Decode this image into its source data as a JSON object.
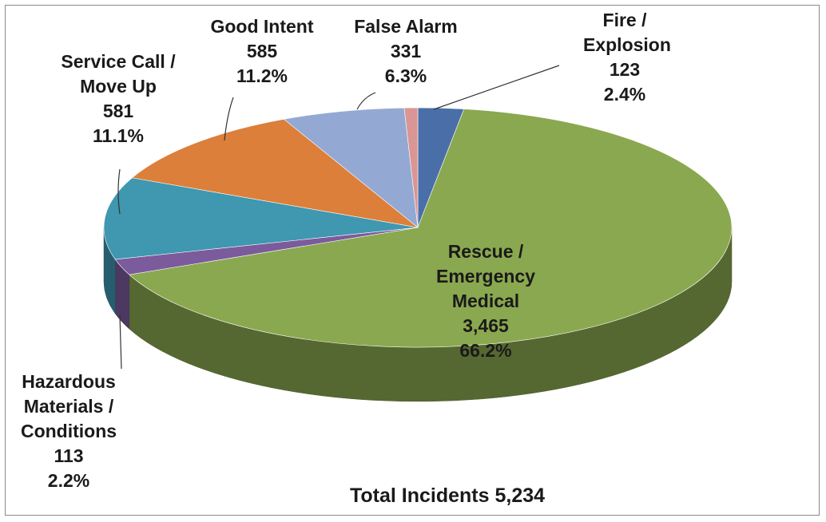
{
  "chart_data": {
    "type": "pie",
    "title": "Total Incidents 5,234",
    "categories": [
      "Fire / Explosion",
      "Rescue / Emergency Medical",
      "Hazardous Materials / Conditions",
      "Service Call / Move Up",
      "Good Intent",
      "False Alarm",
      null
    ],
    "values": [
      123,
      3465,
      113,
      581,
      585,
      331,
      36
    ],
    "value_labels": [
      "123",
      "3,465",
      "113",
      "581",
      "585",
      "331",
      null
    ],
    "percent_labels": [
      "2.4%",
      "66.2%",
      "2.2%",
      "11.1%",
      "11.2%",
      "6.3%",
      null
    ],
    "colors": [
      "#4a6fa8",
      "#8aa84f",
      "#7b5b9c",
      "#3f97b0",
      "#dc7f3a",
      "#93a9d4",
      "#d99694"
    ]
  }
}
